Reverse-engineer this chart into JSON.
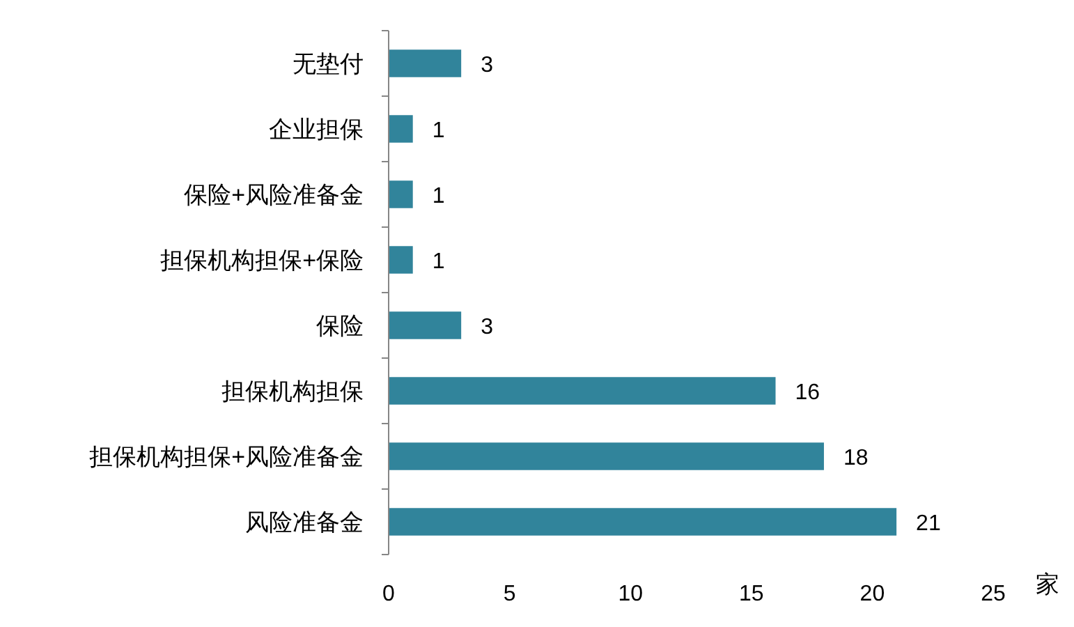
{
  "chart_data": {
    "type": "bar",
    "orientation": "horizontal",
    "xlabel": "家",
    "categories": [
      "无垫付",
      "企业担保",
      "保险+风险准备金",
      "担保机构担保+保险",
      "保险",
      "担保机构担保",
      "担保机构担保+风险准备金",
      "风险准备金"
    ],
    "values": [
      3,
      1,
      1,
      1,
      3,
      16,
      18,
      21
    ],
    "color": "#31849b",
    "xlim": [
      0,
      25
    ],
    "xticks": [
      0,
      5,
      10,
      15,
      20,
      25
    ],
    "data_labels": true
  }
}
